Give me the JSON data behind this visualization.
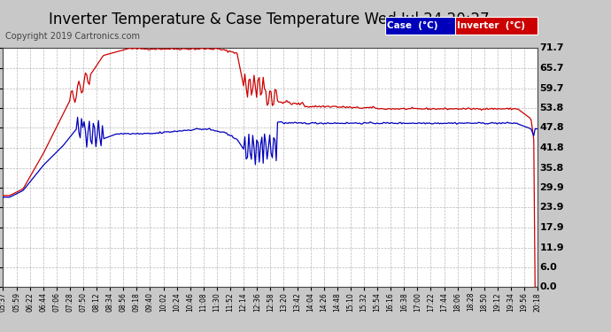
{
  "title": "Inverter Temperature & Case Temperature Wed Jul 24 20:27",
  "copyright": "Copyright 2019 Cartronics.com",
  "yticks": [
    0.0,
    6.0,
    11.9,
    17.9,
    23.9,
    29.9,
    35.8,
    41.8,
    47.8,
    53.8,
    59.7,
    65.7,
    71.7
  ],
  "ymin": 0.0,
  "ymax": 71.7,
  "legend_case_color": "#0000bb",
  "legend_inv_color": "#cc0000",
  "background_color": "#c8c8c8",
  "plot_background": "#ffffff",
  "grid_color": "#999999",
  "title_fontsize": 12,
  "copyright_fontsize": 7,
  "xtick_labels": [
    "05:37",
    "05:59",
    "06:22",
    "06:44",
    "07:06",
    "07:28",
    "07:50",
    "08:12",
    "08:34",
    "08:56",
    "09:18",
    "09:40",
    "10:02",
    "10:24",
    "10:46",
    "11:08",
    "11:30",
    "11:52",
    "12:14",
    "12:36",
    "12:58",
    "13:20",
    "13:42",
    "14:04",
    "14:26",
    "14:48",
    "15:10",
    "15:32",
    "15:54",
    "16:16",
    "16:38",
    "17:00",
    "17:22",
    "17:44",
    "18:06",
    "18:28",
    "18:50",
    "19:12",
    "19:34",
    "19:56",
    "20:18"
  ]
}
